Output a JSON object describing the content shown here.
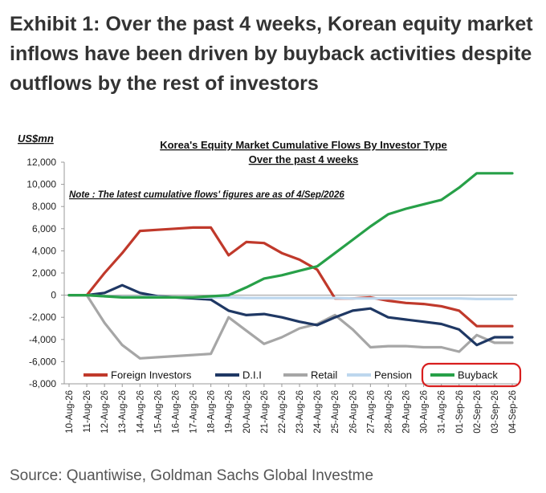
{
  "exhibit_title": "Exhibit 1: Over the past 4 weeks, Korean equity market inflows have been driven by buyback activities despite outflows by the rest of investors",
  "source": "Source: Quantiwise, Goldman Sachs Global Investme",
  "chart_data": {
    "type": "line",
    "title": "Korea's Equity Market Cumulative Flows By Investor Type",
    "subtitle": "Over the past 4 weeks",
    "note": "Note : The latest cumulative  flows' figures are as of 4/Sep/2026",
    "ylabel": "US$mn",
    "ylim": [
      -8000,
      12000
    ],
    "yticks": [
      12000,
      10000,
      8000,
      6000,
      4000,
      2000,
      0,
      -2000,
      -4000,
      -6000,
      -8000
    ],
    "ytick_labels": [
      "12,000",
      "10,000",
      "8,000",
      "6,000",
      "4,000",
      "2,000",
      "0",
      "-2,000",
      "-4,000",
      "-6,000",
      "-8,000"
    ],
    "x": [
      "10-Aug-26",
      "11-Aug-26",
      "12-Aug-26",
      "13-Aug-26",
      "14-Aug-26",
      "15-Aug-26",
      "16-Aug-26",
      "17-Aug-26",
      "18-Aug-26",
      "19-Aug-26",
      "20-Aug-26",
      "21-Aug-26",
      "22-Aug-26",
      "23-Aug-26",
      "24-Aug-26",
      "25-Aug-26",
      "26-Aug-26",
      "27-Aug-26",
      "28-Aug-26",
      "29-Aug-26",
      "30-Aug-26",
      "31-Aug-26",
      "01-Sep-26",
      "02-Sep-26",
      "03-Sep-26",
      "04-Sep-26"
    ],
    "series": [
      {
        "name": "Foreign Investors",
        "color": "#c0392b",
        "values": [
          0,
          0,
          2000,
          3800,
          5800,
          5900,
          6000,
          6100,
          6100,
          3600,
          4800,
          4700,
          3800,
          3200,
          2300,
          -300,
          -300,
          -200,
          -500,
          -700,
          -800,
          -1000,
          -1400,
          -2800,
          -2800,
          -2800
        ]
      },
      {
        "name": "D.I.I",
        "color": "#1f3864",
        "values": [
          0,
          0,
          200,
          900,
          200,
          -100,
          -200,
          -300,
          -400,
          -1400,
          -1800,
          -1700,
          -2000,
          -2400,
          -2700,
          -2000,
          -1400,
          -1200,
          -2000,
          -2200,
          -2400,
          -2600,
          -3100,
          -4500,
          -3800,
          -3800
        ]
      },
      {
        "name": "Retail",
        "color": "#a6a6a6",
        "values": [
          0,
          0,
          -2500,
          -4500,
          -5700,
          -5600,
          -5500,
          -5400,
          -5300,
          -2000,
          -3200,
          -4400,
          -3800,
          -3000,
          -2600,
          -1800,
          -3100,
          -4700,
          -4600,
          -4600,
          -4700,
          -4700,
          -5100,
          -3600,
          -4300,
          -4300
        ]
      },
      {
        "name": "Pension",
        "color": "#bdd7ee",
        "values": [
          0,
          0,
          -100,
          -150,
          -150,
          -150,
          -200,
          -200,
          -200,
          -200,
          -250,
          -250,
          -250,
          -250,
          -250,
          -250,
          -300,
          -300,
          -300,
          -300,
          -300,
          -300,
          -300,
          -350,
          -350,
          -350
        ]
      },
      {
        "name": "Buyback",
        "color": "#27a048",
        "values": [
          0,
          0,
          -100,
          -200,
          -200,
          -200,
          -200,
          -200,
          -100,
          0,
          700,
          1500,
          1800,
          2200,
          2600,
          3800,
          5000,
          6200,
          7300,
          7800,
          8200,
          8600,
          9700,
          11000,
          11000,
          11000
        ]
      }
    ],
    "legend_position": "bottom",
    "highlighted_series": "Buyback",
    "highlight_color": "#d81e1e",
    "grid": false
  }
}
